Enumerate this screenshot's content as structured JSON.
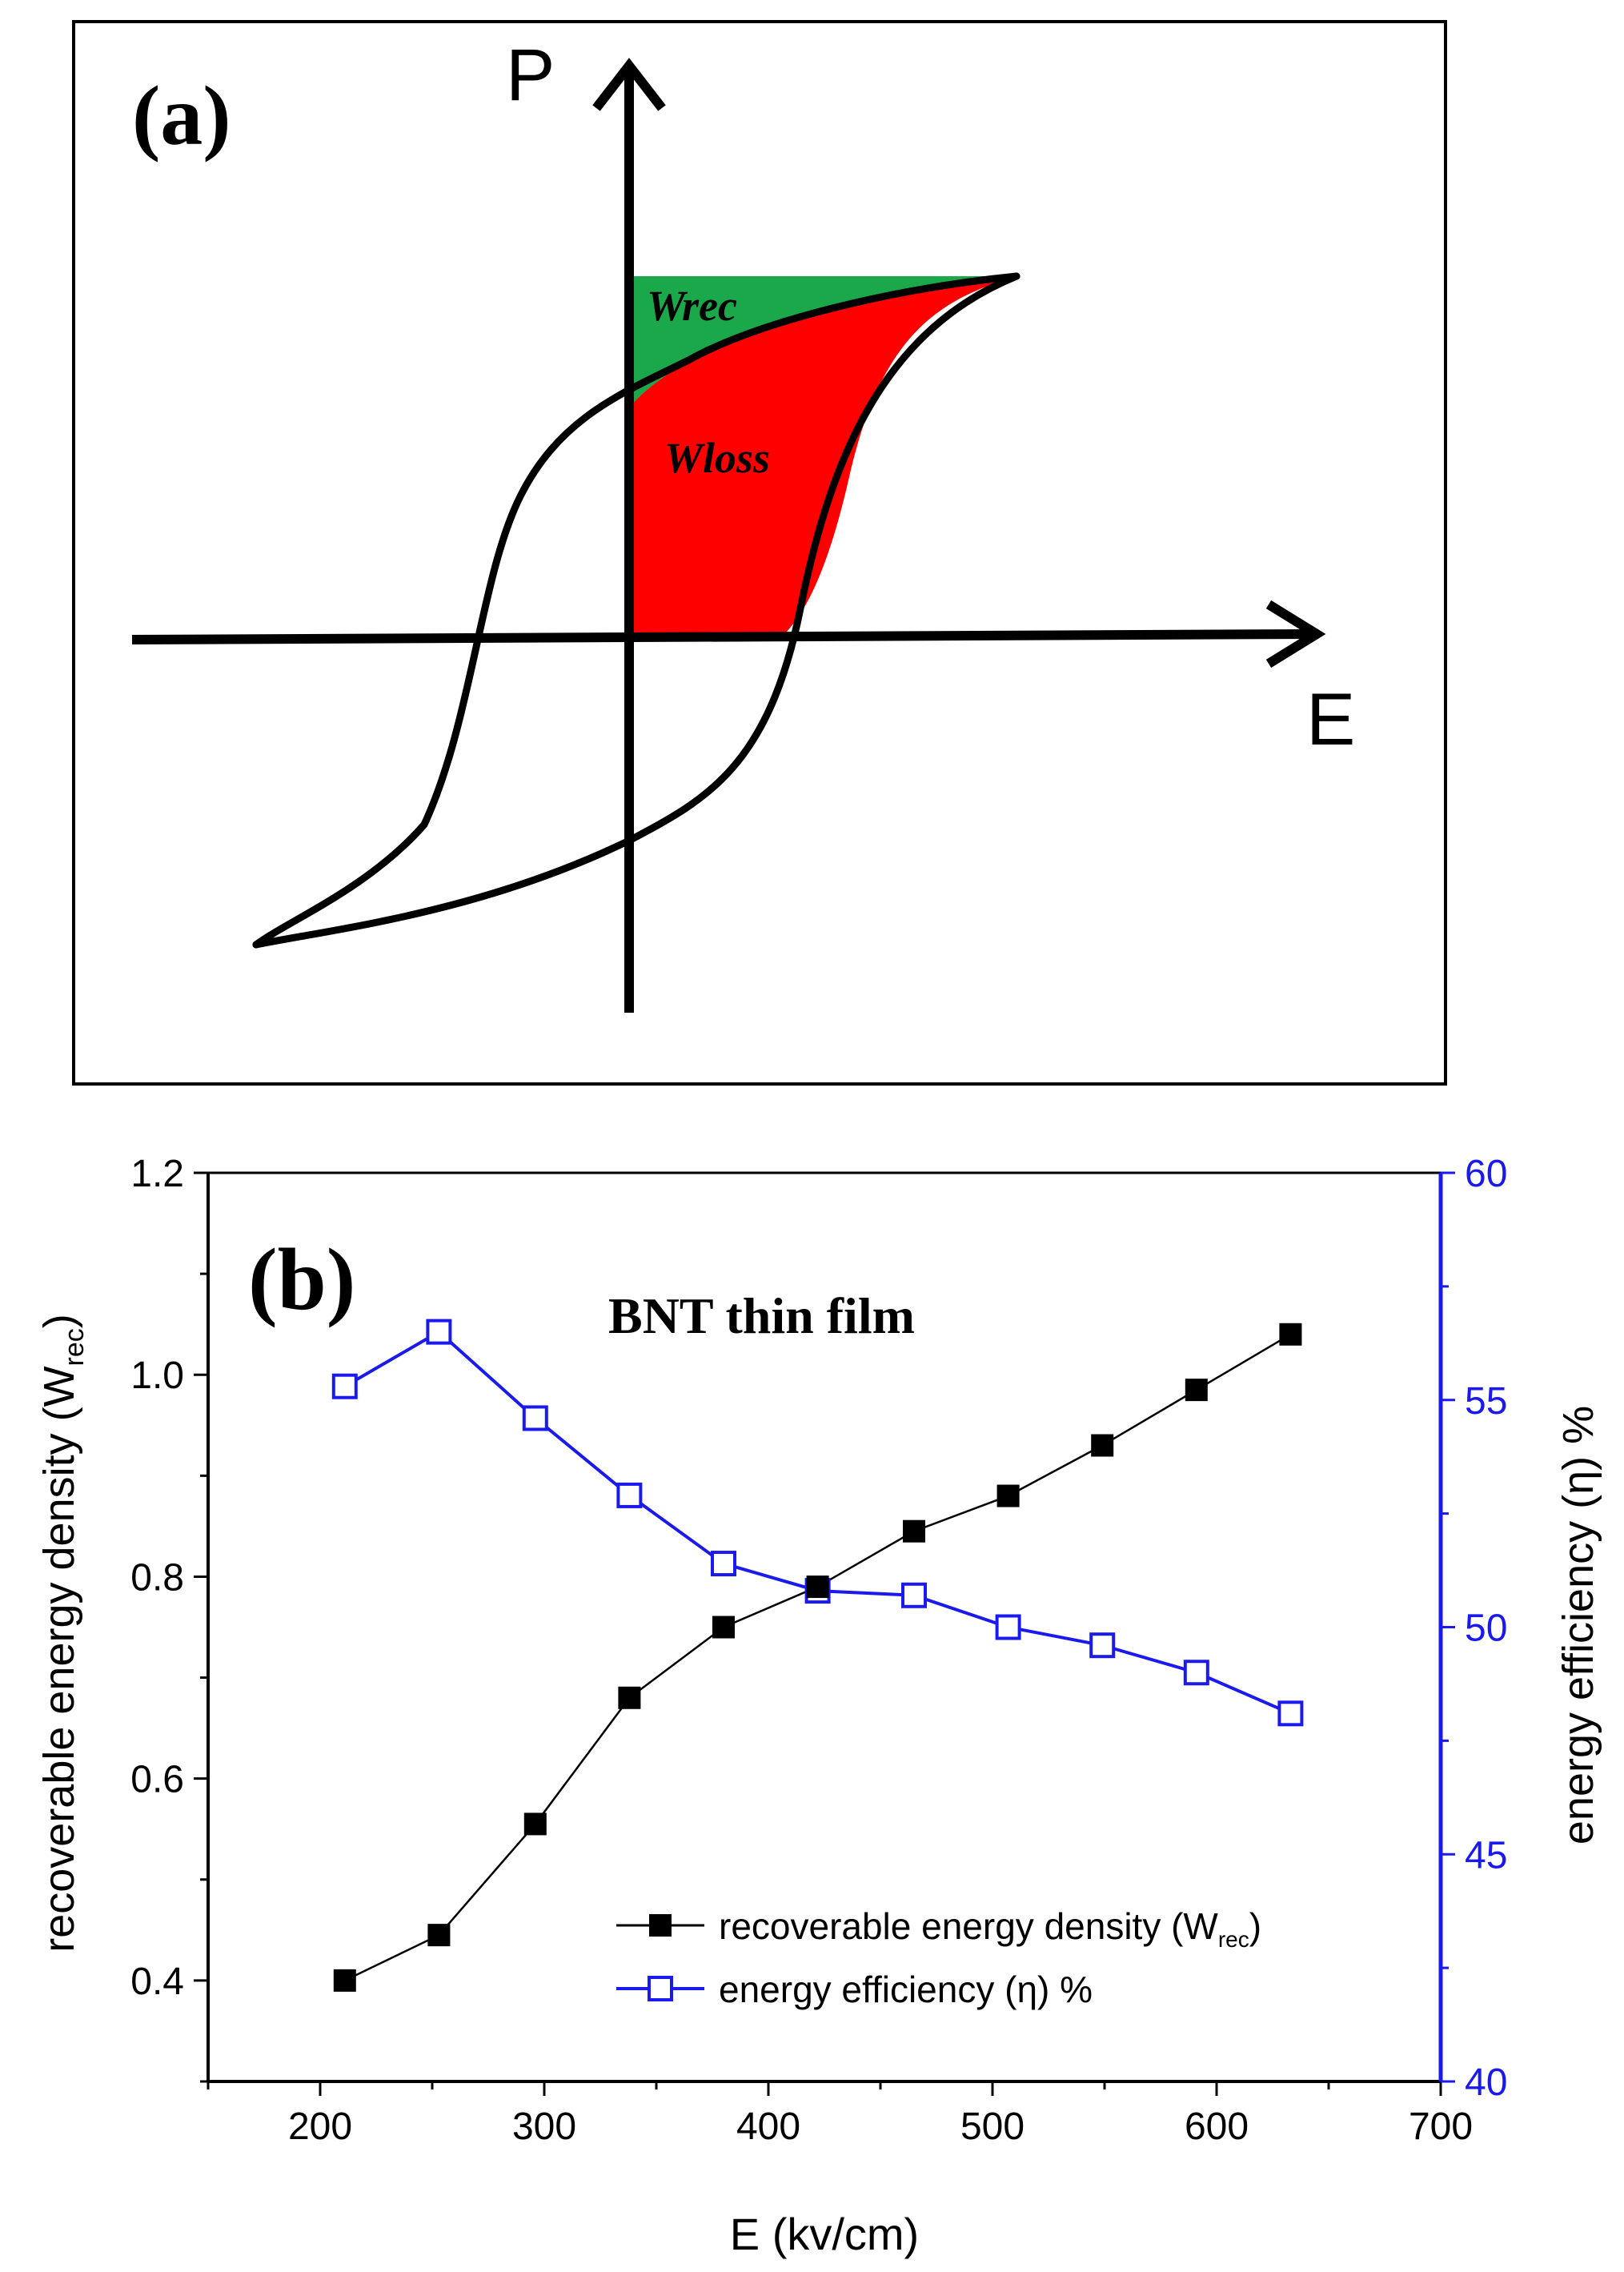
{
  "panel_a": {
    "label": "(a)",
    "y_axis_label": "P",
    "x_axis_label": "E",
    "region_recoverable_label": "Wrec",
    "region_loss_label": "Wloss",
    "colors": {
      "recoverable": "#1aa84a",
      "loss": "#ff0000",
      "loop": "#000000"
    }
  },
  "panel_b": {
    "label": "(b)",
    "annotation": "BNT thin film",
    "legend": {
      "wrec_main": "recoverable energy density (W",
      "wrec_sub": "rec",
      "wrec_close": ")",
      "eta_text": "energy efficiency (η) %"
    },
    "left_axis": {
      "label_main": "recoverable energy density (W",
      "label_sub": "rec",
      "label_close": ")"
    },
    "right_axis": {
      "label": "energy efficiency (η) %"
    },
    "x_axis": {
      "label": "E (kv/cm)"
    },
    "colors": {
      "wrec": "#000000",
      "eta": "#1a1aee"
    }
  },
  "chart_data": {
    "type": "line",
    "title": "BNT thin film",
    "xlabel": "E (kv/cm)",
    "ylabel": "recoverable energy density (Wrec)",
    "y2label": "energy efficiency (η) %",
    "xlim": [
      150,
      700
    ],
    "ylim": [
      0.3,
      1.2
    ],
    "y2lim": [
      40,
      60
    ],
    "x_ticks": [
      200,
      300,
      400,
      500,
      600,
      700
    ],
    "y_ticks": [
      0.4,
      0.6,
      0.8,
      1.0,
      1.2
    ],
    "y2_ticks": [
      40,
      45,
      50,
      55,
      60
    ],
    "series": [
      {
        "name": "recoverable energy density (Wrec)",
        "axis": "left",
        "marker": "filled-square",
        "x": [
          211,
          253,
          296,
          338,
          380,
          422,
          465,
          507,
          549,
          591,
          633
        ],
        "values": [
          0.4,
          0.445,
          0.555,
          0.68,
          0.75,
          0.79,
          0.845,
          0.88,
          0.93,
          0.985,
          1.04
        ]
      },
      {
        "name": "energy efficiency (η) %",
        "axis": "right",
        "marker": "open-square",
        "x": [
          211,
          253,
          296,
          338,
          380,
          422,
          465,
          507,
          549,
          591,
          633
        ],
        "values": [
          55.3,
          56.5,
          54.6,
          52.9,
          51.4,
          50.8,
          50.7,
          50.0,
          49.6,
          49.0,
          48.1
        ]
      }
    ]
  }
}
